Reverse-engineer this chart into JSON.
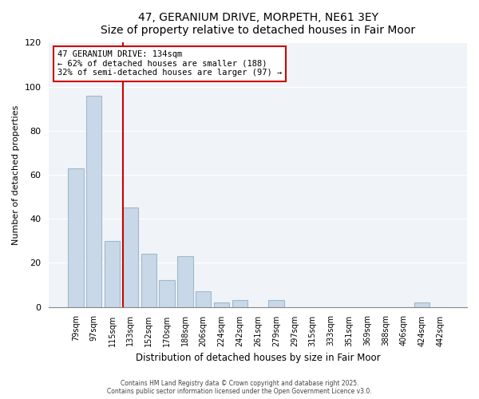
{
  "title": "47, GERANIUM DRIVE, MORPETH, NE61 3EY",
  "subtitle": "Size of property relative to detached houses in Fair Moor",
  "xlabel": "Distribution of detached houses by size in Fair Moor",
  "ylabel": "Number of detached properties",
  "bar_labels": [
    "79sqm",
    "97sqm",
    "115sqm",
    "133sqm",
    "152sqm",
    "170sqm",
    "188sqm",
    "206sqm",
    "224sqm",
    "242sqm",
    "261sqm",
    "279sqm",
    "297sqm",
    "315sqm",
    "333sqm",
    "351sqm",
    "369sqm",
    "388sqm",
    "406sqm",
    "424sqm",
    "442sqm"
  ],
  "bar_values": [
    63,
    96,
    30,
    45,
    24,
    12,
    23,
    7,
    2,
    3,
    0,
    3,
    0,
    0,
    0,
    0,
    0,
    0,
    0,
    2,
    0
  ],
  "bar_color": "#c8d8e8",
  "bar_edge_color": "#a0b8cc",
  "property_line_x": 3,
  "annotation_title": "47 GERANIUM DRIVE: 134sqm",
  "annotation_line1": "← 62% of detached houses are smaller (188)",
  "annotation_line2": "32% of semi-detached houses are larger (97) →",
  "annotation_box_color": "#ffffff",
  "annotation_box_edge": "#cc0000",
  "vline_color": "#cc0000",
  "ylim": [
    0,
    120
  ],
  "yticks": [
    0,
    20,
    40,
    60,
    80,
    100,
    120
  ],
  "background_color": "#f0f4f8",
  "footer_line1": "Contains HM Land Registry data © Crown copyright and database right 2025.",
  "footer_line2": "Contains public sector information licensed under the Open Government Licence v3.0."
}
